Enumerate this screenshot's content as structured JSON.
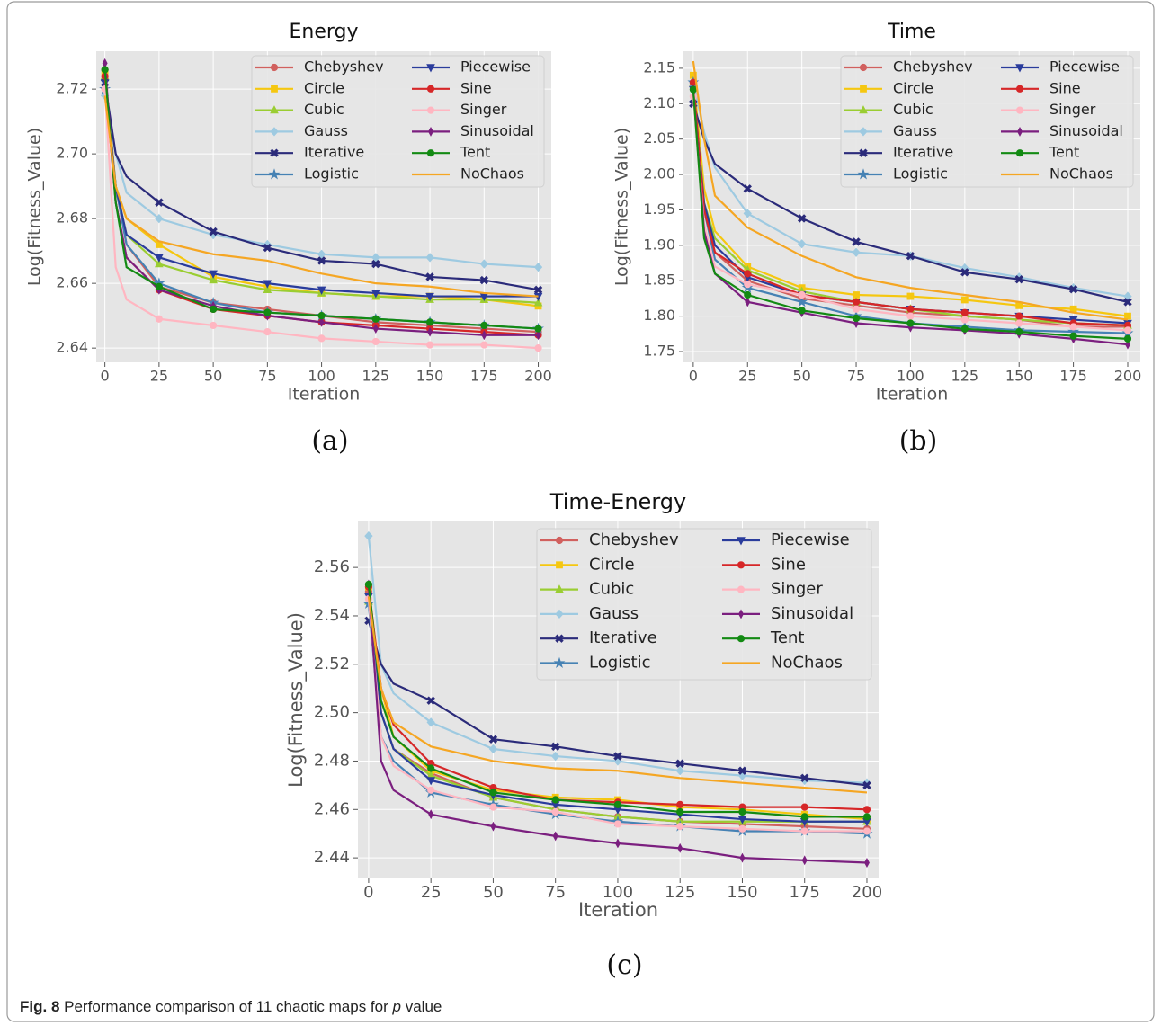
{
  "chart_data": [
    {
      "type": "line",
      "title": "Energy",
      "panel_label": "(a)",
      "x_label": "Iteration",
      "y_label": "Log(Fitness_Value)",
      "x": [
        0,
        5,
        10,
        25,
        50,
        75,
        100,
        125,
        150,
        175,
        200
      ],
      "xlim": [
        -4,
        206
      ],
      "xticks": [
        0,
        25,
        50,
        75,
        100,
        125,
        150,
        175,
        200
      ],
      "ylim": [
        2.6356,
        2.7317
      ],
      "yticks": [
        2.64,
        2.66,
        2.68,
        {
          "value": 2.7,
          "label": "2.70"
        },
        2.72
      ],
      "grid": true,
      "legend": "upper right",
      "series": [
        {
          "name": "Chebyshev",
          "color": "#d1605e",
          "marker": "o",
          "values": [
            2.726,
            2.69,
            2.672,
            2.659,
            2.654,
            2.652,
            2.65,
            2.648,
            2.647,
            2.646,
            2.645
          ]
        },
        {
          "name": "Circle",
          "color": "#f5c710",
          "marker": "s",
          "values": [
            2.725,
            2.69,
            2.68,
            2.672,
            2.662,
            2.659,
            2.657,
            2.656,
            2.656,
            2.655,
            2.653
          ]
        },
        {
          "name": "Cubic",
          "color": "#9acd32",
          "marker": "^",
          "values": [
            2.724,
            2.69,
            2.675,
            2.666,
            2.661,
            2.658,
            2.657,
            2.656,
            2.655,
            2.655,
            2.654
          ]
        },
        {
          "name": "Gauss",
          "color": "#9ecae1",
          "marker": "D",
          "values": [
            2.718,
            2.7,
            2.688,
            2.68,
            2.675,
            2.672,
            2.669,
            2.668,
            2.668,
            2.666,
            2.665
          ]
        },
        {
          "name": "Iterative",
          "color": "#2b2b7a",
          "marker": "X",
          "values": [
            2.722,
            2.7,
            2.693,
            2.685,
            2.676,
            2.671,
            2.667,
            2.666,
            2.662,
            2.661,
            2.658
          ]
        },
        {
          "name": "Logistic",
          "color": "#4682b4",
          "marker": "*",
          "values": [
            2.72,
            2.69,
            2.672,
            2.66,
            2.654,
            2.651,
            2.65,
            2.649,
            2.648,
            2.647,
            2.646
          ]
        },
        {
          "name": "Piecewise",
          "color": "#2a3c9c",
          "marker": "v",
          "values": [
            2.722,
            2.69,
            2.675,
            2.668,
            2.663,
            2.66,
            2.658,
            2.657,
            2.656,
            2.656,
            2.656
          ]
        },
        {
          "name": "Sine",
          "color": "#d62728",
          "marker": "o",
          "values": [
            2.724,
            2.685,
            2.668,
            2.658,
            2.652,
            2.65,
            2.648,
            2.647,
            2.646,
            2.645,
            2.644
          ]
        },
        {
          "name": "Singer",
          "color": "#ffb6c1",
          "marker": "o",
          "values": [
            2.72,
            2.665,
            2.655,
            2.649,
            2.647,
            2.645,
            2.643,
            2.642,
            2.641,
            2.641,
            2.64
          ]
        },
        {
          "name": "Sinusoidal",
          "color": "#7b1f7f",
          "marker": "d",
          "values": [
            2.728,
            2.685,
            2.668,
            2.658,
            2.653,
            2.65,
            2.648,
            2.646,
            2.645,
            2.644,
            2.644
          ]
        },
        {
          "name": "Tent",
          "color": "#138a13",
          "marker": "o",
          "values": [
            2.726,
            2.685,
            2.665,
            2.659,
            2.652,
            2.651,
            2.65,
            2.649,
            2.648,
            2.647,
            2.646
          ]
        },
        {
          "name": "NoChaos",
          "color": "#f5a623",
          "values": [
            2.718,
            2.69,
            2.68,
            2.673,
            2.669,
            2.667,
            2.663,
            2.66,
            2.659,
            2.657,
            2.656
          ]
        }
      ]
    },
    {
      "type": "line",
      "title": "Time",
      "panel_label": "(b)",
      "x_label": "Iteration",
      "y_label": "Log(Fitness_Value)",
      "x": [
        0,
        5,
        10,
        25,
        50,
        75,
        100,
        125,
        150,
        175,
        200
      ],
      "xlim": [
        -4.5,
        205.8
      ],
      "xticks": [
        0,
        25,
        50,
        75,
        100,
        125,
        150,
        175,
        200
      ],
      "ylim": [
        1.7348,
        2.174
      ],
      "yticks": [
        1.75,
        {
          "value": 1.8,
          "label": "1.80"
        },
        1.85,
        {
          "value": 1.9,
          "label": "1.90"
        },
        1.95,
        {
          "value": 2.0,
          "label": "2.00"
        },
        2.05,
        {
          "value": 2.1,
          "label": "2.10"
        },
        2.15
      ],
      "grid": true,
      "legend": "upper right",
      "series": [
        {
          "name": "Chebyshev",
          "color": "#d1605e",
          "marker": "o",
          "values": [
            2.13,
            1.95,
            1.89,
            1.85,
            1.825,
            1.815,
            1.805,
            1.8,
            1.795,
            1.785,
            1.785
          ]
        },
        {
          "name": "Circle",
          "color": "#f5c710",
          "marker": "s",
          "values": [
            2.14,
            1.98,
            1.92,
            1.87,
            1.84,
            1.83,
            1.828,
            1.823,
            1.815,
            1.81,
            1.8
          ]
        },
        {
          "name": "Cubic",
          "color": "#9acd32",
          "marker": "^",
          "values": [
            2.13,
            1.96,
            1.91,
            1.865,
            1.835,
            1.82,
            1.81,
            1.8,
            1.795,
            1.79,
            1.787
          ]
        },
        {
          "name": "Gauss",
          "color": "#9ecae1",
          "marker": "D",
          "values": [
            2.13,
            2.06,
            2.01,
            1.945,
            1.902,
            1.89,
            1.885,
            1.868,
            1.855,
            1.84,
            1.828
          ]
        },
        {
          "name": "Iterative",
          "color": "#2b2b7a",
          "marker": "X",
          "values": [
            2.1,
            2.05,
            2.015,
            1.98,
            1.938,
            1.905,
            1.885,
            1.862,
            1.852,
            1.838,
            1.82
          ]
        },
        {
          "name": "Logistic",
          "color": "#4682b4",
          "marker": "*",
          "values": [
            2.13,
            1.95,
            1.88,
            1.84,
            1.82,
            1.8,
            1.79,
            1.785,
            1.78,
            1.778,
            1.776
          ]
        },
        {
          "name": "Piecewise",
          "color": "#2a3c9c",
          "marker": "v",
          "values": [
            2.12,
            1.96,
            1.9,
            1.855,
            1.83,
            1.82,
            1.81,
            1.805,
            1.8,
            1.795,
            1.79
          ]
        },
        {
          "name": "Sine",
          "color": "#d62728",
          "marker": "o",
          "values": [
            2.13,
            1.95,
            1.89,
            1.86,
            1.83,
            1.82,
            1.81,
            1.805,
            1.8,
            1.79,
            1.787
          ]
        },
        {
          "name": "Singer",
          "color": "#ffb6c1",
          "marker": "o",
          "values": [
            2.11,
            1.93,
            1.87,
            1.845,
            1.83,
            1.81,
            1.8,
            1.795,
            1.79,
            1.785,
            1.78
          ]
        },
        {
          "name": "Sinusoidal",
          "color": "#7b1f7f",
          "marker": "d",
          "values": [
            2.12,
            1.92,
            1.86,
            1.82,
            1.805,
            1.79,
            1.784,
            1.78,
            1.775,
            1.768,
            1.76
          ]
        },
        {
          "name": "Tent",
          "color": "#138a13",
          "marker": "o",
          "values": [
            2.12,
            1.91,
            1.86,
            1.83,
            1.808,
            1.797,
            1.79,
            1.782,
            1.778,
            1.772,
            1.768
          ]
        },
        {
          "name": "NoChaos",
          "color": "#f5a623",
          "values": [
            2.16,
            2.05,
            1.97,
            1.925,
            1.885,
            1.855,
            1.84,
            1.83,
            1.82,
            1.805,
            1.795
          ]
        }
      ]
    },
    {
      "type": "line",
      "title": "Time-Energy",
      "panel_label": "(c)",
      "x_label": "Iteration",
      "y_label": "Log(Fitness_Value)",
      "x": [
        0,
        5,
        10,
        25,
        50,
        75,
        100,
        125,
        150,
        175,
        200
      ],
      "xlim": [
        -4.3,
        204.7
      ],
      "xticks": [
        0,
        25,
        50,
        75,
        100,
        125,
        150,
        175,
        200
      ],
      "ylim": [
        2.4315,
        2.579
      ],
      "yticks": [
        2.44,
        2.46,
        2.48,
        {
          "value": 2.5,
          "label": "2.50"
        },
        2.52,
        2.54,
        2.56
      ],
      "grid": true,
      "legend": "upper right",
      "series": [
        {
          "name": "Chebyshev",
          "color": "#d1605e",
          "marker": "o",
          "values": [
            2.55,
            2.5,
            2.485,
            2.475,
            2.465,
            2.46,
            2.457,
            2.455,
            2.454,
            2.453,
            2.452
          ]
        },
        {
          "name": "Circle",
          "color": "#f5c710",
          "marker": "s",
          "values": [
            2.552,
            2.51,
            2.49,
            2.476,
            2.468,
            2.465,
            2.464,
            2.461,
            2.46,
            2.458,
            2.456
          ]
        },
        {
          "name": "Cubic",
          "color": "#9acd32",
          "marker": "^",
          "values": [
            2.546,
            2.5,
            2.485,
            2.474,
            2.465,
            2.46,
            2.457,
            2.455,
            2.455,
            2.455,
            2.455
          ]
        },
        {
          "name": "Gauss",
          "color": "#9ecae1",
          "marker": "D",
          "values": [
            2.573,
            2.52,
            2.508,
            2.496,
            2.485,
            2.482,
            2.48,
            2.476,
            2.474,
            2.472,
            2.471
          ]
        },
        {
          "name": "Iterative",
          "color": "#2b2b7a",
          "marker": "X",
          "values": [
            2.538,
            2.52,
            2.512,
            2.505,
            2.489,
            2.486,
            2.482,
            2.479,
            2.476,
            2.473,
            2.47
          ]
        },
        {
          "name": "Logistic",
          "color": "#4682b4",
          "marker": "*",
          "values": [
            2.545,
            2.49,
            2.48,
            2.467,
            2.462,
            2.458,
            2.455,
            2.453,
            2.451,
            2.451,
            2.45
          ]
        },
        {
          "name": "Piecewise",
          "color": "#2a3c9c",
          "marker": "v",
          "values": [
            2.548,
            2.5,
            2.485,
            2.472,
            2.466,
            2.462,
            2.46,
            2.458,
            2.456,
            2.455,
            2.455
          ]
        },
        {
          "name": "Sine",
          "color": "#d62728",
          "marker": "o",
          "values": [
            2.552,
            2.51,
            2.495,
            2.479,
            2.469,
            2.464,
            2.463,
            2.462,
            2.461,
            2.461,
            2.46
          ]
        },
        {
          "name": "Singer",
          "color": "#ffb6c1",
          "marker": "o",
          "values": [
            2.547,
            2.49,
            2.478,
            2.468,
            2.461,
            2.459,
            2.454,
            2.453,
            2.452,
            2.451,
            2.451
          ]
        },
        {
          "name": "Sinusoidal",
          "color": "#7b1f7f",
          "marker": "d",
          "values": [
            2.553,
            2.48,
            2.468,
            2.458,
            2.453,
            2.449,
            2.446,
            2.444,
            2.44,
            2.439,
            2.438
          ]
        },
        {
          "name": "Tent",
          "color": "#138a13",
          "marker": "o",
          "values": [
            2.553,
            2.505,
            2.49,
            2.477,
            2.467,
            2.464,
            2.462,
            2.459,
            2.459,
            2.457,
            2.457
          ]
        },
        {
          "name": "NoChaos",
          "color": "#f5a623",
          "values": [
            2.548,
            2.51,
            2.496,
            2.486,
            2.48,
            2.477,
            2.476,
            2.473,
            2.471,
            2.469,
            2.467
          ]
        }
      ]
    }
  ],
  "caption": {
    "label": "Fig. 8",
    "text_before": "Performance comparison of 11 chaotic maps for",
    "variable": "p",
    "text_after": "value"
  }
}
